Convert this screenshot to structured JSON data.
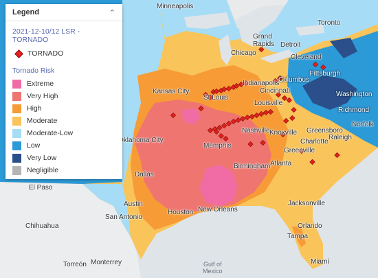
{
  "legend": {
    "title": "Legend",
    "layer_name": "2021-12-10/12 LSR - TORNADO",
    "point_label": "TORNADO",
    "risk_title": "Tornado Risk",
    "risk_levels": [
      {
        "label": "Extreme",
        "color": "#f16ca5"
      },
      {
        "label": "Very High",
        "color": "#ef7670"
      },
      {
        "label": "High",
        "color": "#f79b36"
      },
      {
        "label": "Moderate",
        "color": "#f9c45a"
      },
      {
        "label": "Moderate-Low",
        "color": "#a6dcf6"
      },
      {
        "label": "Low",
        "color": "#2d9ad8"
      },
      {
        "label": "Very Low",
        "color": "#2a4f8a"
      },
      {
        "label": "Negligible",
        "color": "#b5b5b5"
      }
    ]
  },
  "cities": {
    "minneapolis": "Minneapolis",
    "toronto": "Toronto",
    "grand_rapids": "Grand\nRapids",
    "detroit": "Detroit",
    "chicago": "Chicago",
    "cleveland": "Cleveland",
    "pittsburgh": "Pittsburgh",
    "columbus": "Columbus",
    "indianapolis": "Indianapolis",
    "cincinnati": "Cincinnati",
    "kansas_city": "Kansas City",
    "st_louis": "St Louis",
    "washington": "Washington",
    "louisville": "Louisville",
    "richmond": "Richmond",
    "norfolk": "Norfolk",
    "nashville": "Nashville",
    "knoxville": "Knoxville",
    "greensboro": "Greensboro",
    "raleigh": "Raleigh",
    "charlotte": "Charlotte",
    "oklahoma_city": "Oklahoma City",
    "memphis": "Memphis",
    "greenville": "Greenville",
    "atlanta": "Atlanta",
    "birmingham": "Birmingham",
    "dallas": "Dallas",
    "el_paso": "El Paso",
    "austin": "Austin",
    "houston": "Houston",
    "san_antonio": "San Antonio",
    "new_orleans": "New Orleans",
    "jacksonville": "Jacksonville",
    "chihuahua": "Chihuahua",
    "orlando": "Orlando",
    "tampa": "Tampa",
    "torreon": "Torreón",
    "monterrey": "Monterrey",
    "miami": "Miami",
    "gulf": "Gulf of\nMexico"
  },
  "tornado_reports": [
    [
      -90.7,
      38.8
    ],
    [
      -90.5,
      38.85
    ],
    [
      -90.2,
      38.9
    ],
    [
      -90.0,
      39.0
    ],
    [
      -89.7,
      39.05
    ],
    [
      -89.4,
      39.15
    ],
    [
      -89.2,
      39.25
    ],
    [
      -88.9,
      39.35
    ],
    [
      -88.6,
      39.45
    ],
    [
      -91.2,
      38.6
    ],
    [
      -90.9,
      38.4
    ],
    [
      -86.5,
      38.6
    ],
    [
      -86.1,
      38.35
    ],
    [
      -85.8,
      38.2
    ],
    [
      -86.7,
      39.6
    ],
    [
      -86.4,
      39.8
    ],
    [
      -87.6,
      41.9
    ],
    [
      -84.1,
      40.8
    ],
    [
      -83.6,
      40.6
    ],
    [
      -90.9,
      36.0
    ],
    [
      -90.6,
      36.1
    ],
    [
      -90.3,
      36.2
    ],
    [
      -90.0,
      36.35
    ],
    [
      -89.7,
      36.5
    ],
    [
      -89.4,
      36.65
    ],
    [
      -89.1,
      36.75
    ],
    [
      -88.8,
      36.85
    ],
    [
      -88.5,
      36.95
    ],
    [
      -88.2,
      37.0
    ],
    [
      -87.9,
      37.1
    ],
    [
      -87.6,
      37.2
    ],
    [
      -87.3,
      37.3
    ],
    [
      -87.0,
      37.35
    ],
    [
      -90.5,
      35.9
    ],
    [
      -90.2,
      35.6
    ],
    [
      -89.9,
      35.4
    ],
    [
      -86.0,
      36.7
    ],
    [
      -85.6,
      36.9
    ],
    [
      -85.5,
      37.5
    ],
    [
      -86.2,
      35.7
    ],
    [
      -88.3,
      35.0
    ],
    [
      -87.5,
      35.1
    ],
    [
      -84.3,
      33.7
    ],
    [
      -82.7,
      34.2
    ],
    [
      -85.0,
      34.5
    ],
    [
      -93.3,
      37.1
    ],
    [
      -91.5,
      37.6
    ]
  ]
}
